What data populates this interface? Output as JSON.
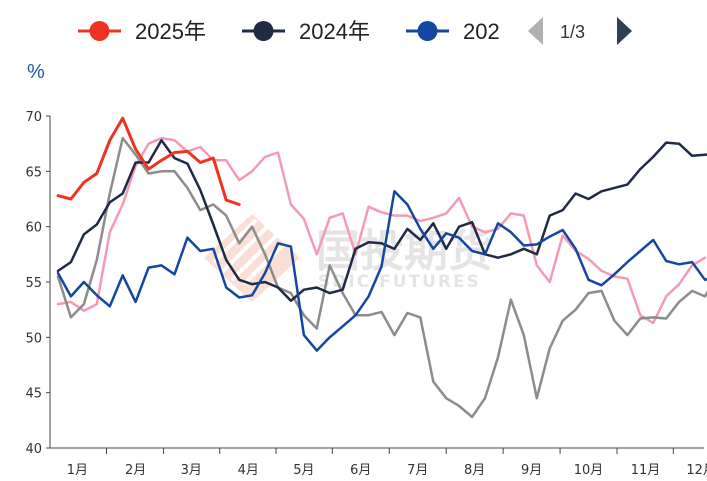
{
  "legend": {
    "items": [
      {
        "label": "2025年",
        "color": "#ee3322"
      },
      {
        "label": "2024年",
        "color": "#1f2a44"
      },
      {
        "label": "202",
        "color": "#1546a0"
      }
    ],
    "pager": {
      "text": "1/3",
      "prev_icon": "triangle-left-icon",
      "next_icon": "triangle-right-icon"
    }
  },
  "watermark": {
    "cn": "国投期货",
    "en": "SDIC FUTURES"
  },
  "chart_data": {
    "type": "line",
    "ylabel": "%",
    "ylim": [
      40,
      70
    ],
    "yticks": [
      40,
      45,
      50,
      55,
      60,
      65,
      70
    ],
    "xlim": [
      1,
      52
    ],
    "xticks": [
      {
        "label": "1月",
        "pos": 2.5
      },
      {
        "label": "2月",
        "pos": 7
      },
      {
        "label": "3月",
        "pos": 11.3
      },
      {
        "label": "4月",
        "pos": 15.7
      },
      {
        "label": "5月",
        "pos": 20
      },
      {
        "label": "6月",
        "pos": 24.4
      },
      {
        "label": "7月",
        "pos": 28.8
      },
      {
        "label": "8月",
        "pos": 33.2
      },
      {
        "label": "9月",
        "pos": 37.6
      },
      {
        "label": "10月",
        "pos": 42
      },
      {
        "label": "11月",
        "pos": 46.4
      },
      {
        "label": "12月",
        "pos": 50.7
      }
    ],
    "grid": false,
    "series": [
      {
        "name": "pink",
        "color": "#f59ab5",
        "width": 2.5,
        "values": [
          53.0,
          53.2,
          52.4,
          53.0,
          59.5,
          62.0,
          65.5,
          67.5,
          68.0,
          67.8,
          66.8,
          67.2,
          66.0,
          66.0,
          64.2,
          65.0,
          66.3,
          66.7,
          62.0,
          60.7,
          57.5,
          60.8,
          61.2,
          57.5,
          61.8,
          61.3,
          61.0,
          61.0,
          60.5,
          60.8,
          61.2,
          62.6,
          60.0,
          59.5,
          59.8,
          61.2,
          61.0,
          56.5,
          55.0,
          59.2,
          57.8,
          57.1,
          56.0,
          55.5,
          55.3,
          52.0,
          51.3,
          53.7,
          54.8,
          56.5,
          57.2
        ]
      },
      {
        "name": "gray",
        "color": "#8c8c8c",
        "width": 2.5,
        "values": [
          55.5,
          51.8,
          53.0,
          57.0,
          63.0,
          68.0,
          66.5,
          64.8,
          65.0,
          65.0,
          63.5,
          61.5,
          62.0,
          61.0,
          58.5,
          60.0,
          57.5,
          54.5,
          54.0,
          52.0,
          50.8,
          56.5,
          54.0,
          52.0,
          52.0,
          52.3,
          50.2,
          52.2,
          51.8,
          46.0,
          44.5,
          43.8,
          42.8,
          44.5,
          48.2,
          53.4,
          50.2,
          44.5,
          49.0,
          51.5,
          52.5,
          54.0,
          54.2,
          51.5,
          50.2,
          51.7,
          51.8,
          51.7,
          53.2,
          54.2,
          53.7,
          55.8
        ]
      },
      {
        "name": "2024年",
        "color": "#1f2a44",
        "width": 2.5,
        "values": [
          56.0,
          56.8,
          59.3,
          60.2,
          62.2,
          63.0,
          65.8,
          65.8,
          67.8,
          66.2,
          65.7,
          63.3,
          60.2,
          57.0,
          55.2,
          54.8,
          55.0,
          54.5,
          53.3,
          54.3,
          54.5,
          54.0,
          54.3,
          58.0,
          58.6,
          58.5,
          58.0,
          59.8,
          58.8,
          60.3,
          58.0,
          60.0,
          60.4,
          57.5,
          57.2,
          57.5,
          58.0,
          57.5,
          61.0,
          61.5,
          63.0,
          62.5,
          63.2,
          63.5,
          63.8,
          65.2,
          66.3,
          67.6,
          67.5,
          66.4,
          66.5,
          66.6
        ]
      },
      {
        "name": "202",
        "color": "#1546a0",
        "width": 2.5,
        "values": [
          55.8,
          53.7,
          55.0,
          53.8,
          52.8,
          55.6,
          53.2,
          56.3,
          56.5,
          55.7,
          59.0,
          57.8,
          58.0,
          54.5,
          53.6,
          53.8,
          55.8,
          58.5,
          58.2,
          50.2,
          48.8,
          50.0,
          51.0,
          52.0,
          53.7,
          56.4,
          63.2,
          62.0,
          59.8,
          58.0,
          59.4,
          59.0,
          57.8,
          57.5,
          60.3,
          59.5,
          58.3,
          58.4,
          59.1,
          59.7,
          58.0,
          55.2,
          54.7,
          55.7,
          56.8,
          57.8,
          58.8,
          56.9,
          56.6,
          56.8,
          55.2,
          55.6
        ]
      },
      {
        "name": "2025年",
        "color": "#ee3322",
        "width": 3,
        "values": [
          62.8,
          62.5,
          64.0,
          64.8,
          67.8,
          69.8,
          67.0,
          65.2,
          66.0,
          66.7,
          66.8,
          65.8,
          66.2,
          62.4,
          62.0
        ]
      }
    ]
  }
}
